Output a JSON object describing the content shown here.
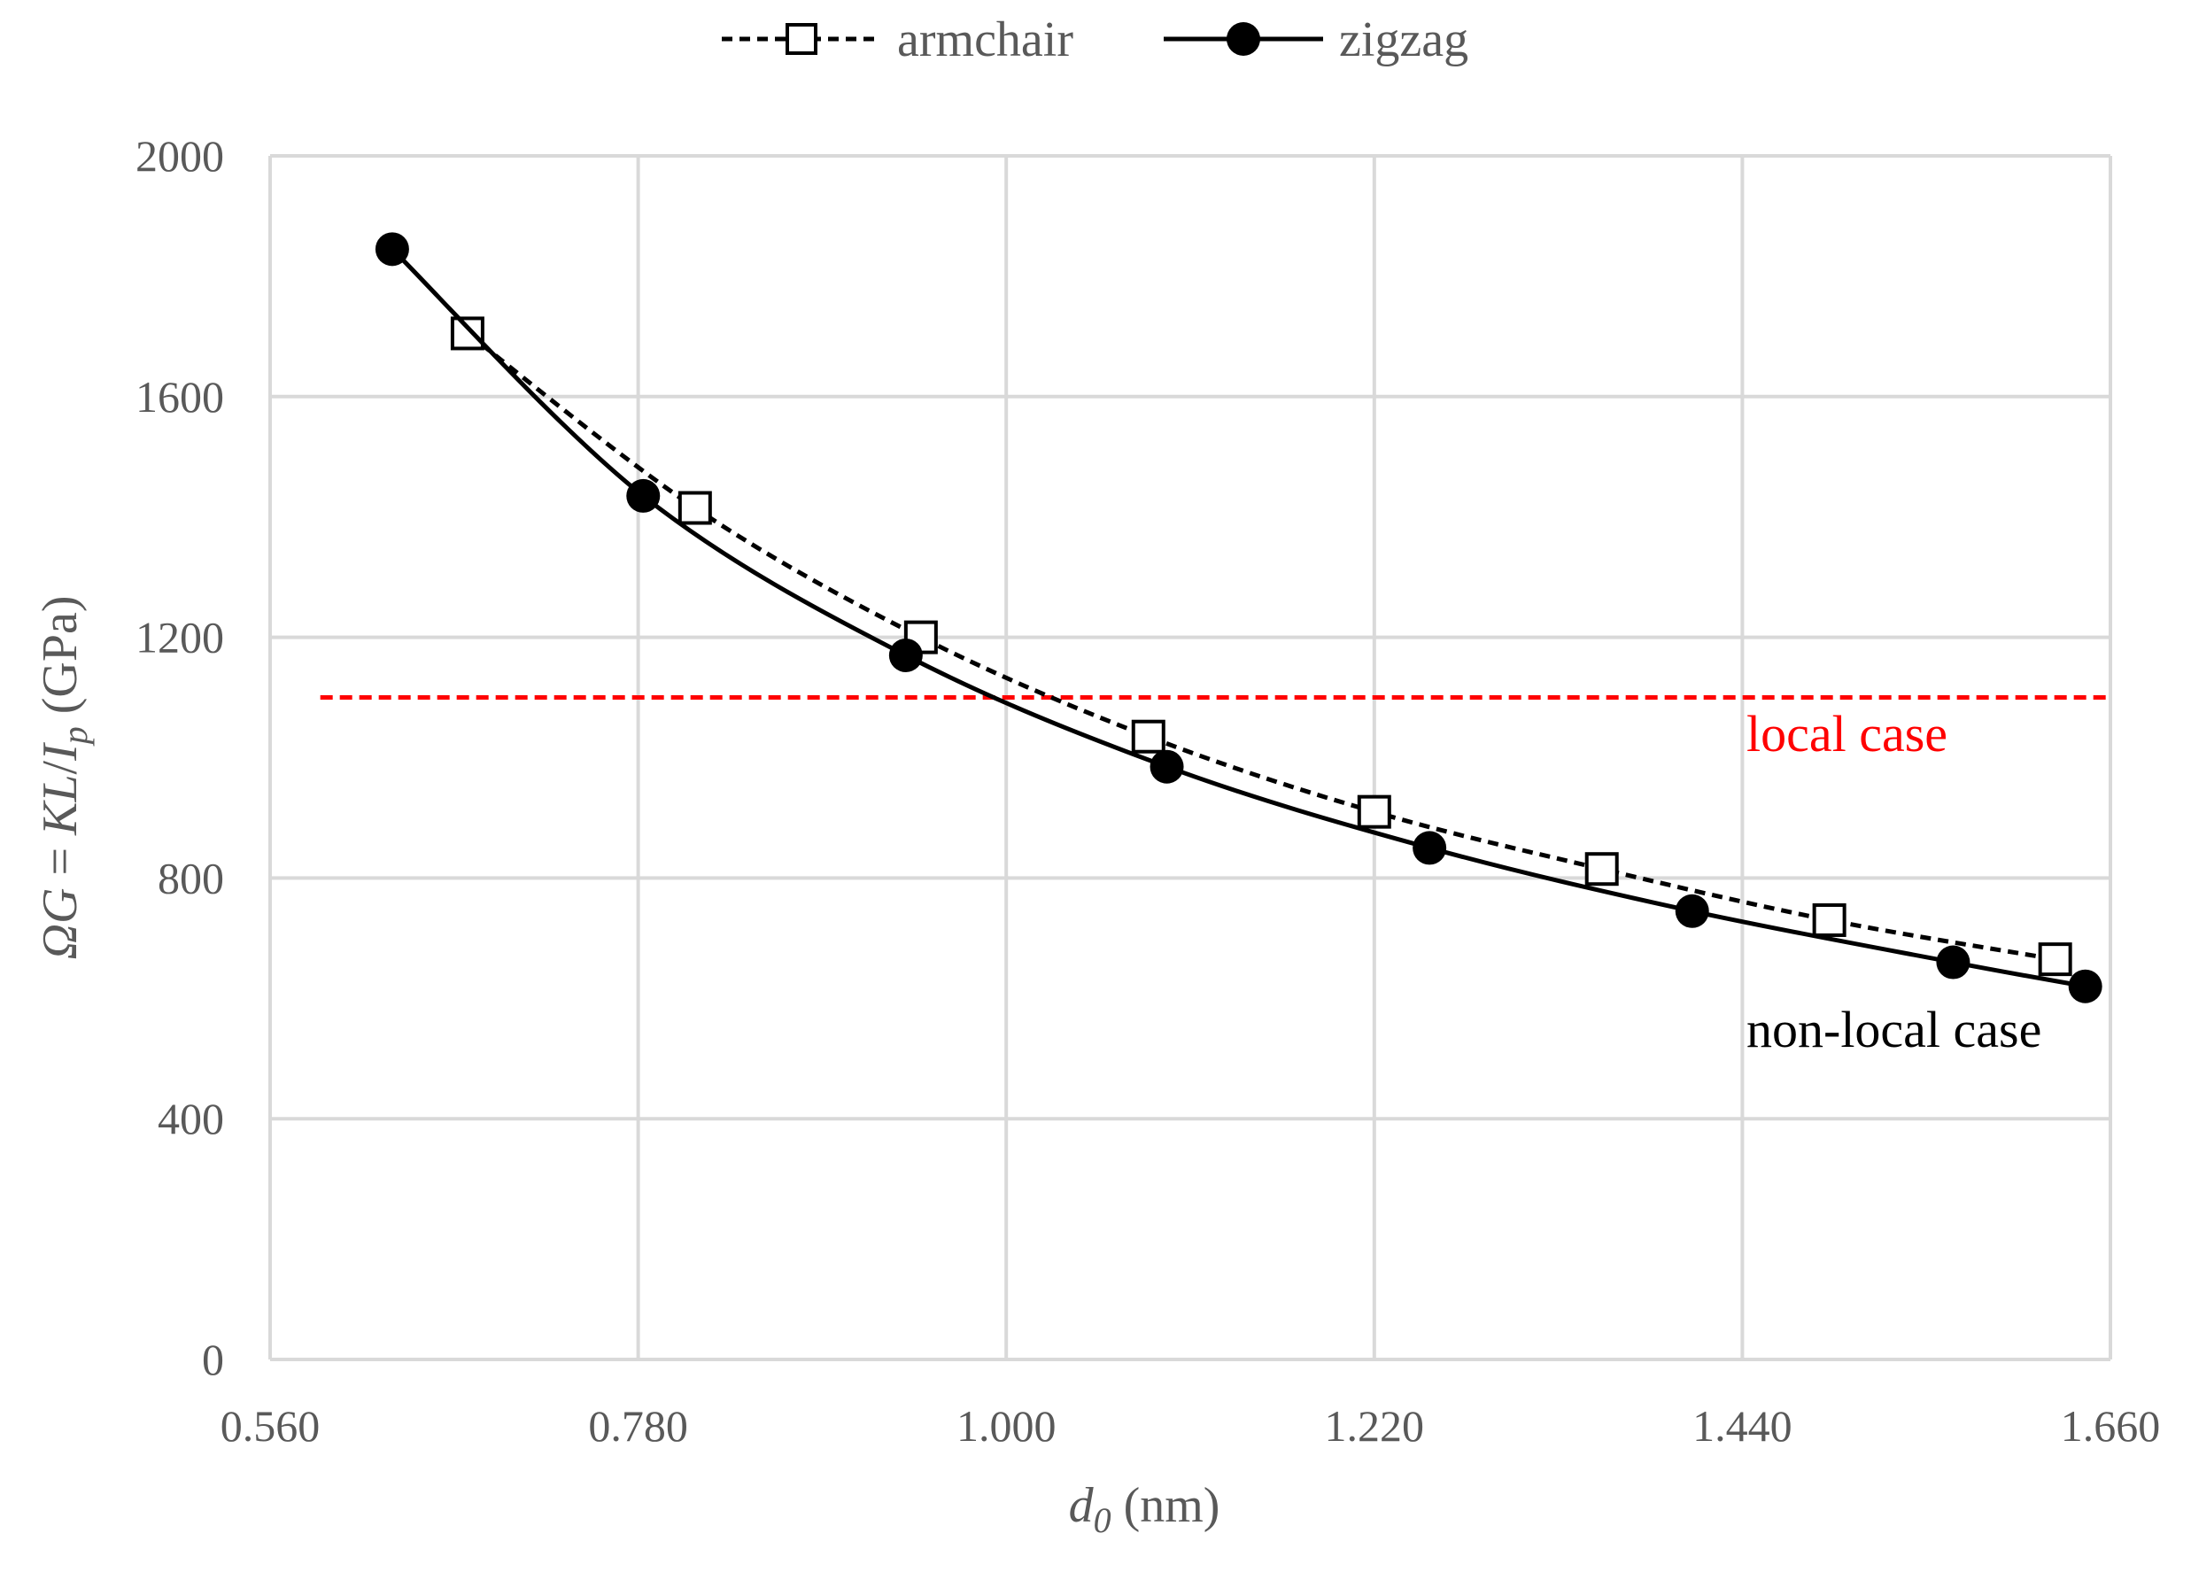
{
  "chart_data": {
    "type": "line",
    "xlabel": {
      "main": "d",
      "sub": "0",
      "unit": " (nm)"
    },
    "ylabel": {
      "omega": "Ω",
      "g": "G",
      "eq": " = ",
      "kl": "KL",
      "slash": "/",
      "i": "I",
      "p": "p",
      "unit": " (GPa)"
    },
    "xlim": [
      0.56,
      1.66
    ],
    "ylim": [
      0,
      2000
    ],
    "x_ticks": [
      0.56,
      0.78,
      1.0,
      1.22,
      1.44,
      1.66
    ],
    "x_tick_labels": [
      "0.560",
      "0.780",
      "1.000",
      "1.220",
      "1.440",
      "1.660"
    ],
    "y_ticks": [
      0,
      400,
      800,
      1200,
      1600,
      2000
    ],
    "y_tick_labels": [
      "0",
      "400",
      "800",
      "1200",
      "1600",
      "2000"
    ],
    "grid": true,
    "legend_position": "top",
    "series": [
      {
        "name": "armchair",
        "style": "dashed",
        "marker": "open-square",
        "color": "#000000",
        "x": [
          0.678,
          0.814,
          0.949,
          1.085,
          1.22,
          1.356,
          1.492,
          1.627
        ],
        "y": [
          1705,
          1415,
          1200,
          1035,
          910,
          815,
          730,
          665
        ]
      },
      {
        "name": "zigzag",
        "style": "solid",
        "marker": "filled-circle",
        "color": "#000000",
        "x": [
          0.633,
          0.783,
          0.94,
          1.096,
          1.253,
          1.41,
          1.566,
          1.645
        ],
        "y": [
          1845,
          1435,
          1170,
          985,
          850,
          745,
          660,
          620
        ]
      }
    ],
    "reference_line": {
      "y": 1100,
      "x_start": 0.59,
      "x_end": 1.66,
      "color": "#ff0000",
      "style": "dashed"
    },
    "annotations": [
      {
        "text": "local case",
        "color": "#ff0000"
      },
      {
        "text": "non-local case",
        "color": "#000000"
      }
    ]
  }
}
